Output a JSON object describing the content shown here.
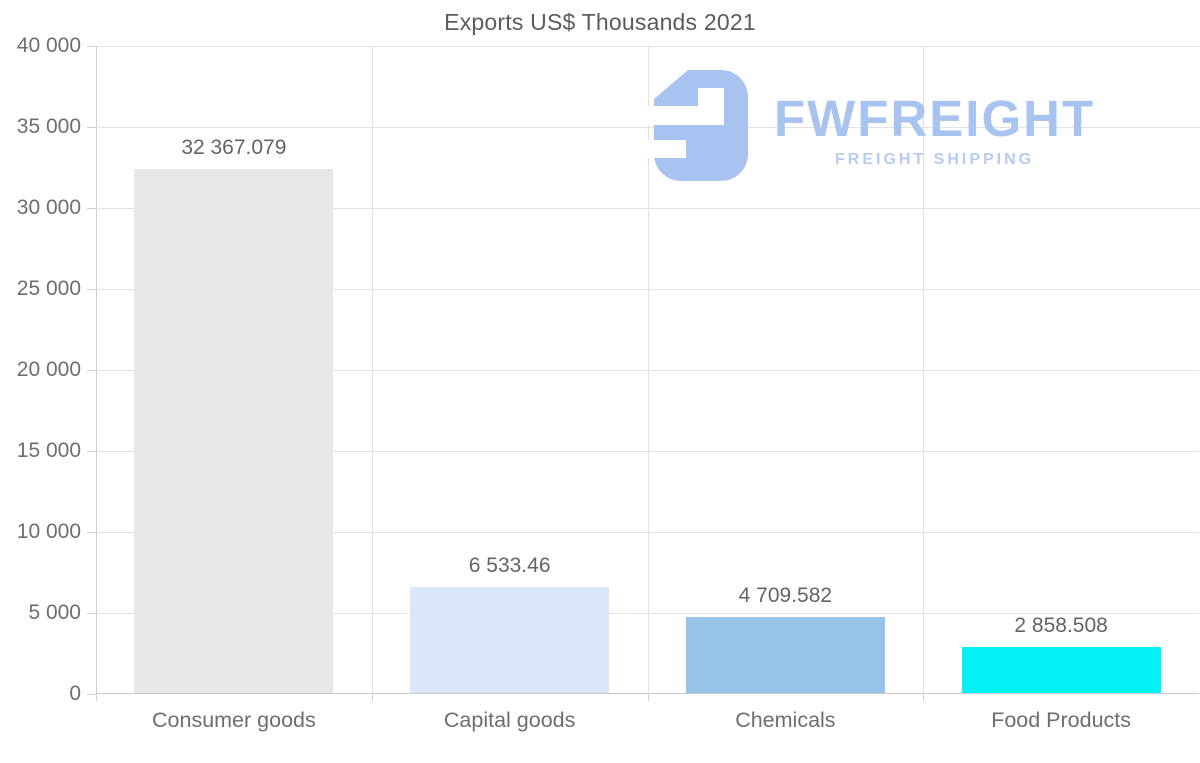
{
  "chart_data": {
    "type": "bar",
    "title": "Exports US$ Thousands 2021",
    "categories": [
      "Consumer goods",
      "Capital goods",
      "Chemicals",
      "Food Products"
    ],
    "values": [
      32367.079,
      6533.46,
      4709.582,
      2858.508
    ],
    "value_labels": [
      "32 367.079",
      "6 533.46",
      "4 709.582",
      "2 858.508"
    ],
    "bar_colors": [
      "#e7e7e7",
      "#d9e7f8",
      "#97c3e8",
      "#04f2f5"
    ],
    "xlabel": "",
    "ylabel": "",
    "ylim": [
      0,
      40000
    ],
    "ytick_values": [
      0,
      5000,
      10000,
      15000,
      20000,
      25000,
      30000,
      35000,
      40000
    ],
    "ytick_labels": [
      "0",
      "5 000",
      "10 000",
      "15 000",
      "20 000",
      "25 000",
      "30 000",
      "35 000",
      "40 000"
    ],
    "grid": "horizontal and vertical category separators, light gray",
    "legend": "none"
  },
  "logo": {
    "brand": "FWFREIGHT",
    "tagline": "FREIGHT SHIPPING",
    "brand_color": "#a8c3f0",
    "tagline_color": "#b7cbf3",
    "icon": "fwfreight-monogram"
  }
}
